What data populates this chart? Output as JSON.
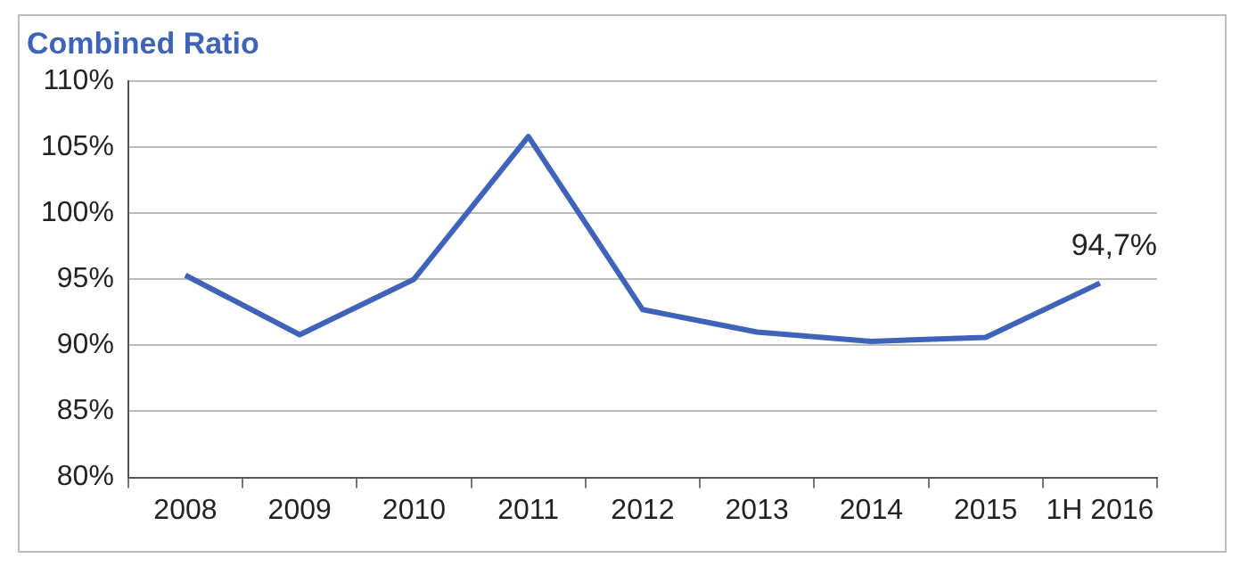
{
  "chart_data": {
    "type": "line",
    "title": "Combined Ratio",
    "categories": [
      "2008",
      "2009",
      "2010",
      "2011",
      "2012",
      "2013",
      "2014",
      "2015",
      "1H 2016"
    ],
    "series": [
      {
        "color": "#3f63b8",
        "values": [
          95.3,
          90.8,
          95.0,
          105.8,
          92.7,
          91.0,
          90.3,
          90.6,
          94.7
        ],
        "value_labels": [
          null,
          null,
          null,
          null,
          null,
          null,
          null,
          null,
          "94,7%"
        ]
      }
    ],
    "ylim": [
      80,
      110
    ],
    "yticks": [
      {
        "value": 80,
        "label": "80%"
      },
      {
        "value": 85,
        "label": "85%"
      },
      {
        "value": 90,
        "label": "90%"
      },
      {
        "value": 95,
        "label": "95%"
      },
      {
        "value": 100,
        "label": "100%"
      },
      {
        "value": 105,
        "label": "105%"
      },
      {
        "value": 110,
        "label": "110%"
      }
    ],
    "grid": "y",
    "legend": false,
    "marker": "none",
    "line_style": "solid"
  }
}
